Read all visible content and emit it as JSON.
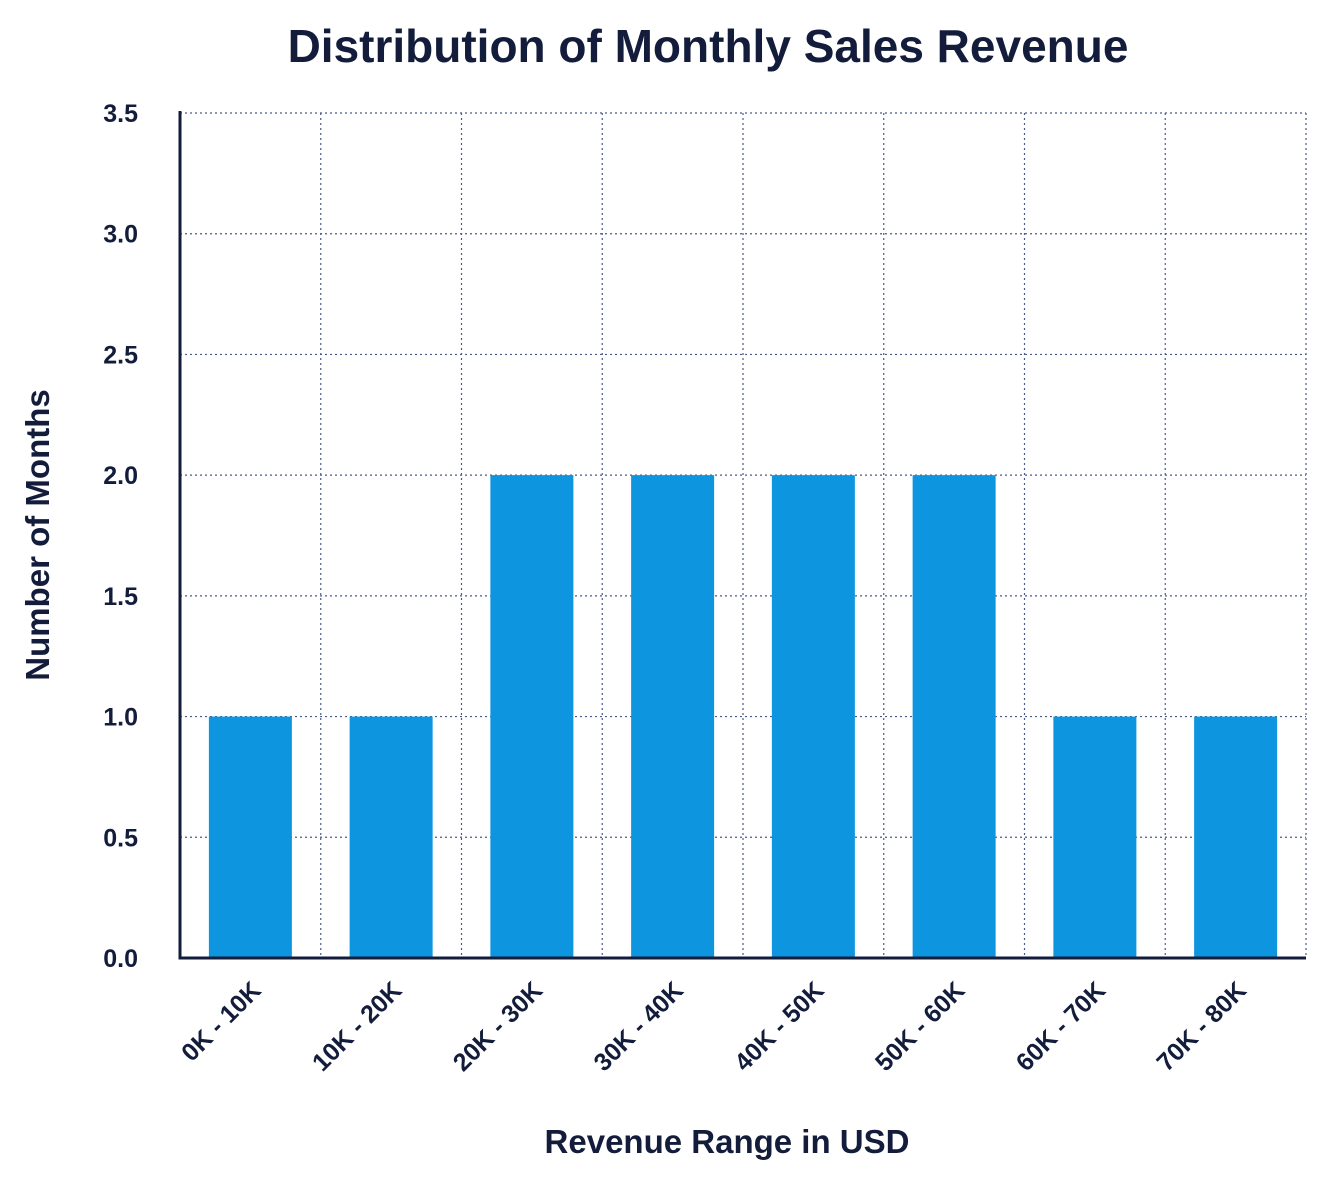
{
  "chart_data": {
    "type": "bar",
    "title": "Distribution of Monthly Sales Revenue",
    "xlabel": "Revenue Range in USD",
    "ylabel": "Number of Months",
    "categories": [
      "0K - 10K",
      "10K - 20K",
      "20K - 30K",
      "30K - 40K",
      "40K - 50K",
      "50K - 60K",
      "60K - 70K",
      "70K - 80K"
    ],
    "values": [
      1,
      1,
      2,
      2,
      2,
      2,
      1,
      1
    ],
    "ylim": [
      0,
      3.5
    ],
    "yticks": [
      "0.0",
      "0.5",
      "1.0",
      "1.5",
      "2.0",
      "2.5",
      "3.0",
      "3.5"
    ],
    "grid": true,
    "bar_color": "#0d95df",
    "axis_color": "#131d3b",
    "grid_color": "#4a5a8a"
  }
}
